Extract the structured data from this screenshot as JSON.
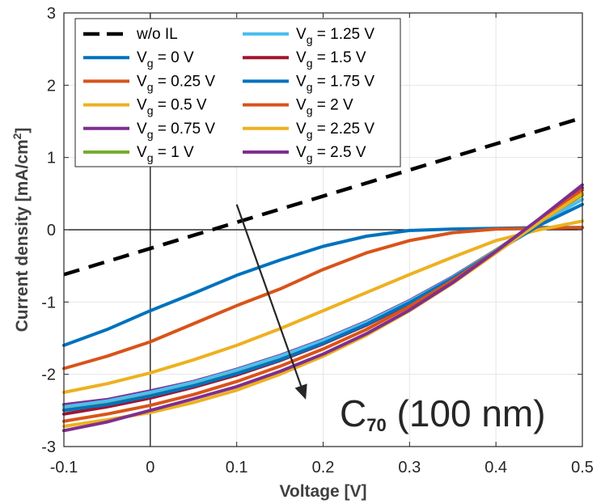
{
  "chart_data": {
    "type": "line",
    "xlabel": "Voltage [V]",
    "ylabel": "Current density [mA/cm",
    "ylabel_sup": "2",
    "ylabel_end": "]",
    "xlim": [
      -0.1,
      0.5
    ],
    "ylim": [
      -3,
      3
    ],
    "xticks": [
      -0.1,
      0,
      0.1,
      0.2,
      0.3,
      0.4,
      0.5
    ],
    "xtick_labels": [
      "-0.1",
      "0",
      "0.1",
      "0.2",
      "0.3",
      "0.4",
      "0.5"
    ],
    "yticks": [
      -3,
      -2,
      -1,
      0,
      1,
      2,
      3
    ],
    "ytick_labels": [
      "-3",
      "-2",
      "-1",
      "0",
      "1",
      "2",
      "3"
    ],
    "grid": true,
    "legend_position": "top-left",
    "annotation": {
      "main": "C",
      "sub": "70",
      "rest": " (100 nm)"
    },
    "arrow": {
      "from": [
        0.1,
        0.35
      ],
      "to": [
        0.18,
        -2.35
      ]
    },
    "series": [
      {
        "label_main": "w/o IL",
        "label_sub": "",
        "label_rest": "",
        "color": "#000000",
        "dashed": true,
        "x": [
          -0.1,
          0.5
        ],
        "y": [
          -0.62,
          1.55
        ]
      },
      {
        "label_main": "V",
        "label_sub": "g",
        "label_rest": " = 0 V",
        "color": "#0072BD",
        "dashed": false,
        "x": [
          -0.1,
          -0.05,
          0,
          0.05,
          0.1,
          0.15,
          0.2,
          0.25,
          0.3,
          0.35,
          0.4,
          0.45,
          0.5
        ],
        "y": [
          -1.6,
          -1.38,
          -1.12,
          -0.88,
          -0.63,
          -0.42,
          -0.23,
          -0.09,
          -0.01,
          0.01,
          0.02,
          0.03,
          0.03
        ]
      },
      {
        "label_main": "V",
        "label_sub": "g",
        "label_rest": " = 0.25 V",
        "color": "#D95319",
        "dashed": false,
        "x": [
          -0.1,
          -0.05,
          0,
          0.05,
          0.1,
          0.15,
          0.2,
          0.25,
          0.3,
          0.35,
          0.4,
          0.45,
          0.5
        ],
        "y": [
          -1.92,
          -1.75,
          -1.55,
          -1.3,
          -1.05,
          -0.82,
          -0.55,
          -0.32,
          -0.15,
          -0.04,
          0.01,
          0.02,
          0.03
        ]
      },
      {
        "label_main": "V",
        "label_sub": "g",
        "label_rest": " = 0.5 V",
        "color": "#EDB120",
        "dashed": false,
        "x": [
          -0.1,
          -0.05,
          0,
          0.05,
          0.1,
          0.15,
          0.2,
          0.25,
          0.3,
          0.35,
          0.4,
          0.45,
          0.5
        ],
        "y": [
          -2.25,
          -2.13,
          -1.98,
          -1.8,
          -1.6,
          -1.37,
          -1.12,
          -0.87,
          -0.62,
          -0.38,
          -0.15,
          0.0,
          0.12
        ]
      },
      {
        "label_main": "V",
        "label_sub": "g",
        "label_rest": " = 0.75 V",
        "color": "#7E2F8E",
        "dashed": false,
        "x": [
          -0.1,
          -0.05,
          0,
          0.05,
          0.1,
          0.15,
          0.2,
          0.25,
          0.3,
          0.35,
          0.4,
          0.45,
          0.5
        ],
        "y": [
          -2.42,
          -2.35,
          -2.23,
          -2.1,
          -1.93,
          -1.74,
          -1.52,
          -1.27,
          -0.98,
          -0.65,
          -0.28,
          0.12,
          0.58
        ]
      },
      {
        "label_main": "V",
        "label_sub": "g",
        "label_rest": " = 1 V",
        "color": "#77AC30",
        "dashed": false,
        "x": [
          -0.1,
          -0.05,
          0,
          0.05,
          0.1,
          0.15,
          0.2,
          0.25,
          0.3,
          0.35,
          0.4,
          0.45,
          0.5
        ],
        "y": [
          -2.48,
          -2.39,
          -2.27,
          -2.13,
          -1.96,
          -1.77,
          -1.55,
          -1.3,
          -1.0,
          -0.66,
          -0.28,
          0.1,
          0.48
        ]
      },
      {
        "label_main": "V",
        "label_sub": "g",
        "label_rest": " = 1.25 V",
        "color": "#4DBEEE",
        "dashed": false,
        "x": [
          -0.1,
          -0.05,
          0,
          0.05,
          0.1,
          0.15,
          0.2,
          0.25,
          0.3,
          0.35,
          0.4,
          0.45,
          0.5
        ],
        "y": [
          -2.45,
          -2.37,
          -2.25,
          -2.11,
          -1.94,
          -1.75,
          -1.53,
          -1.28,
          -0.99,
          -0.66,
          -0.29,
          0.08,
          0.42
        ]
      },
      {
        "label_main": "V",
        "label_sub": "g",
        "label_rest": " = 1.5 V",
        "color": "#A2142F",
        "dashed": false,
        "x": [
          -0.1,
          -0.05,
          0,
          0.05,
          0.1,
          0.15,
          0.2,
          0.25,
          0.3,
          0.35,
          0.4,
          0.45,
          0.5
        ],
        "y": [
          -2.55,
          -2.45,
          -2.33,
          -2.18,
          -2.01,
          -1.81,
          -1.58,
          -1.32,
          -1.02,
          -0.68,
          -0.3,
          0.1,
          0.5
        ]
      },
      {
        "label_main": "V",
        "label_sub": "g",
        "label_rest": " = 1.75 V",
        "color": "#0072BD",
        "dashed": false,
        "x": [
          -0.1,
          -0.05,
          0,
          0.05,
          0.1,
          0.15,
          0.2,
          0.25,
          0.3,
          0.35,
          0.4,
          0.45,
          0.5
        ],
        "y": [
          -2.5,
          -2.42,
          -2.3,
          -2.16,
          -1.99,
          -1.8,
          -1.57,
          -1.31,
          -1.01,
          -0.67,
          -0.3,
          0.06,
          0.35
        ]
      },
      {
        "label_main": "V",
        "label_sub": "g",
        "label_rest": " = 2 V",
        "color": "#D95319",
        "dashed": false,
        "x": [
          -0.1,
          -0.05,
          0,
          0.05,
          0.1,
          0.15,
          0.2,
          0.25,
          0.3,
          0.35,
          0.4,
          0.45,
          0.5
        ],
        "y": [
          -2.65,
          -2.55,
          -2.43,
          -2.28,
          -2.1,
          -1.89,
          -1.65,
          -1.38,
          -1.06,
          -0.7,
          -0.3,
          0.12,
          0.55
        ]
      },
      {
        "label_main": "V",
        "label_sub": "g",
        "label_rest": " = 2.25 V",
        "color": "#EDB120",
        "dashed": false,
        "x": [
          -0.1,
          -0.05,
          0,
          0.05,
          0.1,
          0.15,
          0.2,
          0.25,
          0.3,
          0.35,
          0.4,
          0.45,
          0.5
        ],
        "y": [
          -2.72,
          -2.63,
          -2.53,
          -2.39,
          -2.22,
          -2.0,
          -1.75,
          -1.46,
          -1.12,
          -0.74,
          -0.32,
          0.1,
          0.5
        ]
      },
      {
        "label_main": "V",
        "label_sub": "g",
        "label_rest": " = 2.5 V",
        "color": "#7E2F8E",
        "dashed": false,
        "x": [
          -0.1,
          -0.05,
          0,
          0.05,
          0.1,
          0.15,
          0.2,
          0.25,
          0.3,
          0.35,
          0.4,
          0.45,
          0.5
        ],
        "y": [
          -2.78,
          -2.66,
          -2.5,
          -2.34,
          -2.17,
          -1.96,
          -1.72,
          -1.44,
          -1.11,
          -0.73,
          -0.3,
          0.15,
          0.62
        ]
      }
    ]
  }
}
